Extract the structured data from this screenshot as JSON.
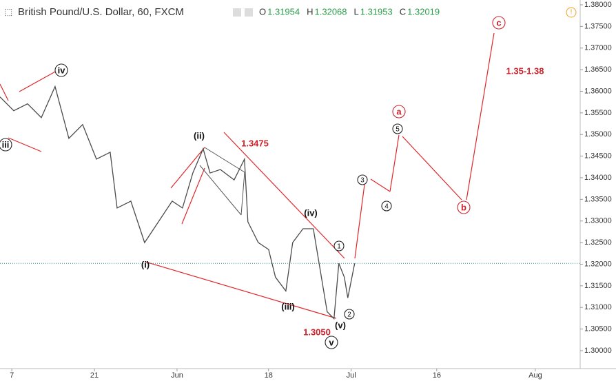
{
  "header": {
    "title": "British Pound/U.S. Dollar, 60, FXCM",
    "ohlc": [
      {
        "key": "O",
        "value": "1.31954"
      },
      {
        "key": "H",
        "value": "1.32068"
      },
      {
        "key": "L",
        "value": "1.31953"
      },
      {
        "key": "C",
        "value": "1.32019"
      }
    ]
  },
  "chart_data": {
    "type": "line",
    "color": "#4a4a4a",
    "close_value": 1.32019,
    "x": [
      -2,
      0.33,
      2.67,
      5.0,
      7.33,
      9.67,
      12.0,
      14.34,
      16.67,
      17.84,
      20.17,
      22.5,
      24.84,
      27.17,
      28.92,
      30.67,
      32.42,
      33.59,
      35.34,
      37.67,
      39.42,
      40.0,
      41.76,
      43.51,
      44.67,
      46.43,
      47.59,
      49.34,
      51.09,
      52.26,
      53.43,
      54.59,
      55.41,
      56.34,
      56.93,
      58.09
    ],
    "values": [
      1.3587,
      1.3555,
      1.3571,
      1.3539,
      1.3611,
      1.3491,
      1.3523,
      1.3443,
      1.3459,
      1.333,
      1.3346,
      1.325,
      1.3298,
      1.3346,
      1.333,
      1.3411,
      1.3467,
      1.3411,
      1.3419,
      1.3395,
      1.3443,
      1.3298,
      1.325,
      1.3234,
      1.317,
      1.3138,
      1.325,
      1.3282,
      1.3282,
      1.3186,
      1.309,
      1.3074,
      1.3202,
      1.317,
      1.3122,
      1.3202
    ],
    "xlim": [
      -2,
      96.3
    ],
    "ylim": [
      1.2955,
      1.38
    ],
    "xticks": [
      {
        "value": 0,
        "label": "7"
      },
      {
        "value": 14,
        "label": "21"
      },
      {
        "value": 28,
        "label": "Jun"
      },
      {
        "value": 43.5,
        "label": "18"
      },
      {
        "value": 57.5,
        "label": "Jul"
      },
      {
        "value": 72,
        "label": "16"
      },
      {
        "value": 88.7,
        "label": "Aug"
      }
    ],
    "yticks": [
      {
        "value": 1.3,
        "label": "1.30000"
      },
      {
        "value": 1.305,
        "label": "1.30500"
      },
      {
        "value": 1.31,
        "label": "1.31000"
      },
      {
        "value": 1.315,
        "label": "1.31500"
      },
      {
        "value": 1.32,
        "label": "1.32000"
      },
      {
        "value": 1.325,
        "label": "1.32500"
      },
      {
        "value": 1.33,
        "label": "1.33000"
      },
      {
        "value": 1.335,
        "label": "1.33500"
      },
      {
        "value": 1.34,
        "label": "1.34000"
      },
      {
        "value": 1.345,
        "label": "1.34500"
      },
      {
        "value": 1.35,
        "label": "1.35000"
      },
      {
        "value": 1.355,
        "label": "1.35500"
      },
      {
        "value": 1.36,
        "label": "1.36000"
      },
      {
        "value": 1.365,
        "label": "1.36500"
      },
      {
        "value": 1.37,
        "label": "1.37000"
      },
      {
        "value": 1.375,
        "label": "1.37500"
      },
      {
        "value": 1.38,
        "label": "1.38000"
      }
    ],
    "annotations": [
      "iii",
      "iv",
      "(ii)",
      "1.3475",
      "(iv)",
      "1",
      "(i)",
      "(iii)",
      "1.3050",
      "(v)",
      "v",
      "2",
      "3",
      "4",
      "5",
      "a",
      "b",
      "c",
      "1.35-1.38"
    ]
  }
}
